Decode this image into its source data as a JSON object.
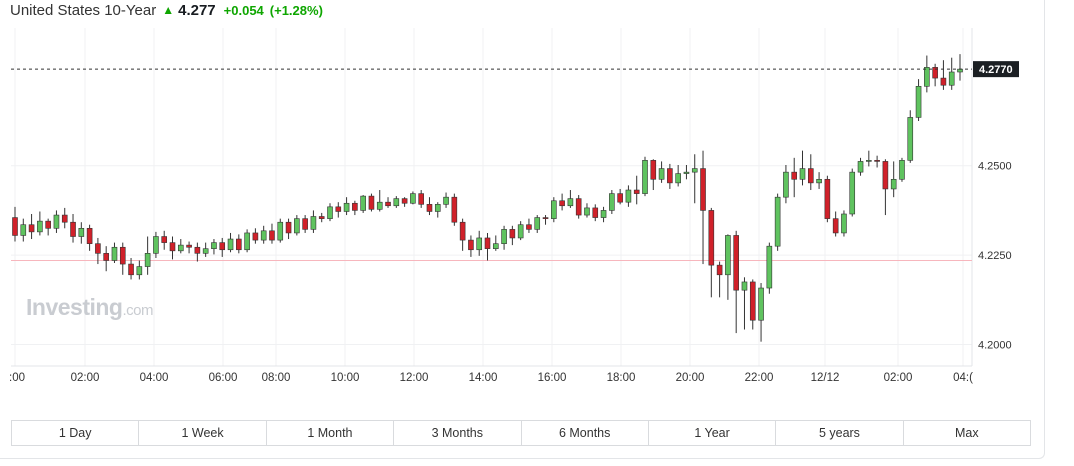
{
  "header": {
    "name": "United States 10-Year",
    "arrow": "▲",
    "price": "4.277",
    "change": "+0.054",
    "change_pct": "(+1.28%)"
  },
  "watermark": {
    "brand": "Investing",
    "suffix": ".com"
  },
  "last_price_label": "4.2770",
  "colors": {
    "up": "#5fc35f",
    "down": "#d0212a",
    "prev_close_line": "#f7b6bd"
  },
  "tabs": [
    "1 Day",
    "1 Week",
    "1 Month",
    "3 Months",
    "6 Months",
    "1 Year",
    "5 years",
    "Max"
  ],
  "chart_data": {
    "type": "candlestick",
    "ylim": [
      4.194,
      4.2885
    ],
    "y_ticks": [
      {
        "value": 4.25,
        "label": "4.2500"
      },
      {
        "value": 4.225,
        "label": "4.2250"
      },
      {
        "value": 4.2,
        "label": "4.2000"
      }
    ],
    "x_ticks": [
      ":00",
      "02:00",
      "04:00",
      "06:00",
      "08:00",
      "10:00",
      "12:00",
      "14:00",
      "16:00",
      "18:00",
      "20:00",
      "22:00",
      "12/12",
      "02:00",
      "04:("
    ],
    "last_price": 4.277,
    "prev_close": 4.2235,
    "candles": [
      [
        4.2355,
        4.2305,
        4.2385,
        4.2288
      ],
      [
        4.2305,
        4.2335,
        4.2352,
        4.2288
      ],
      [
        4.2335,
        4.2315,
        4.2365,
        4.2295
      ],
      [
        4.2315,
        4.2345,
        4.2372,
        4.2305
      ],
      [
        4.2345,
        4.2325,
        4.2352,
        4.2305
      ],
      [
        4.2325,
        4.2362,
        4.2375,
        4.2312
      ],
      [
        4.2362,
        4.2342,
        4.2382,
        4.2325
      ],
      [
        4.2342,
        4.2302,
        4.2365,
        4.2285
      ],
      [
        4.2302,
        4.2325,
        4.2342,
        4.2282
      ],
      [
        4.2325,
        4.2282,
        4.2335,
        4.2262
      ],
      [
        4.2282,
        4.2255,
        4.2298,
        4.2225
      ],
      [
        4.2255,
        4.2235,
        4.2275,
        4.2205
      ],
      [
        4.2235,
        4.2272,
        4.2285,
        4.2228
      ],
      [
        4.2272,
        4.2225,
        4.2285,
        4.2195
      ],
      [
        4.2225,
        4.2195,
        4.2242,
        4.2182
      ],
      [
        4.2195,
        4.2218,
        4.2235,
        4.2182
      ],
      [
        4.2218,
        4.2255,
        4.2302,
        4.2195
      ],
      [
        4.2255,
        4.2302,
        4.2315,
        4.2242
      ],
      [
        4.2302,
        4.2285,
        4.2318,
        4.2265
      ],
      [
        4.2285,
        4.2262,
        4.2302,
        4.2238
      ],
      [
        4.2262,
        4.2278,
        4.2295,
        4.2255
      ],
      [
        4.2278,
        4.2272,
        4.2288,
        4.2255
      ],
      [
        4.2272,
        4.2255,
        4.2285,
        4.2232
      ],
      [
        4.2255,
        4.2268,
        4.2285,
        4.2245
      ],
      [
        4.2268,
        4.2285,
        4.2295,
        4.2252
      ],
      [
        4.2285,
        4.2265,
        4.2298,
        4.2245
      ],
      [
        4.2265,
        4.2295,
        4.2312,
        4.2258
      ],
      [
        4.2295,
        4.2265,
        4.2308,
        4.2255
      ],
      [
        4.2265,
        4.2312,
        4.2322,
        4.2258
      ],
      [
        4.2312,
        4.2292,
        4.2325,
        4.2282
      ],
      [
        4.2292,
        4.2318,
        4.2332,
        4.2282
      ],
      [
        4.2318,
        4.2292,
        4.2338,
        4.2282
      ],
      [
        4.2292,
        4.2342,
        4.2352,
        4.2285
      ],
      [
        4.2342,
        4.2312,
        4.2352,
        4.2295
      ],
      [
        4.2312,
        4.2352,
        4.2362,
        4.2305
      ],
      [
        4.2352,
        4.2322,
        4.2362,
        4.2312
      ],
      [
        4.2322,
        4.2358,
        4.2375,
        4.2312
      ],
      [
        4.2358,
        4.2352,
        4.2368,
        4.2342
      ],
      [
        4.2352,
        4.2385,
        4.2395,
        4.2345
      ],
      [
        4.2385,
        4.2372,
        4.2398,
        4.2355
      ],
      [
        4.2372,
        4.2395,
        4.2412,
        4.2362
      ],
      [
        4.2395,
        4.2375,
        4.2402,
        4.2362
      ],
      [
        4.2375,
        4.2415,
        4.2418,
        4.2368
      ],
      [
        4.2415,
        4.2378,
        4.2422,
        4.2372
      ],
      [
        4.2378,
        4.2398,
        4.2432,
        4.2372
      ],
      [
        4.2398,
        4.2388,
        4.2412,
        4.2382
      ],
      [
        4.2388,
        4.2408,
        4.2415,
        4.2382
      ],
      [
        4.2408,
        4.2395,
        4.2412,
        4.2385
      ],
      [
        4.2395,
        4.2422,
        4.2428,
        4.2392
      ],
      [
        4.2422,
        4.2392,
        4.2432,
        4.2382
      ],
      [
        4.2392,
        4.2372,
        4.2412,
        4.2362
      ],
      [
        4.2372,
        4.2392,
        4.2398,
        4.2355
      ],
      [
        4.2392,
        4.2412,
        4.2425,
        4.2382
      ],
      [
        4.2412,
        4.2342,
        4.2422,
        4.2332
      ],
      [
        4.2342,
        4.2292,
        4.2352,
        4.2262
      ],
      [
        4.2292,
        4.2265,
        4.2305,
        4.2245
      ],
      [
        4.2265,
        4.2298,
        4.2318,
        4.2248
      ],
      [
        4.2298,
        4.2268,
        4.2312,
        4.2235
      ],
      [
        4.2268,
        4.2282,
        4.2305,
        4.2262
      ],
      [
        4.2282,
        4.2322,
        4.2332,
        4.2265
      ],
      [
        4.2322,
        4.2298,
        4.2332,
        4.2278
      ],
      [
        4.2298,
        4.2335,
        4.2345,
        4.2292
      ],
      [
        4.2335,
        4.2322,
        4.2352,
        4.2312
      ],
      [
        4.2322,
        4.2355,
        4.2362,
        4.2312
      ],
      [
        4.2355,
        4.2352,
        4.2362,
        4.2335
      ],
      [
        4.2352,
        4.2402,
        4.2412,
        4.2342
      ],
      [
        4.2402,
        4.2388,
        4.2422,
        4.2375
      ],
      [
        4.2388,
        4.2408,
        4.2432,
        4.2382
      ],
      [
        4.2408,
        4.2362,
        4.2418,
        4.2352
      ],
      [
        4.2362,
        4.2382,
        4.2395,
        4.2355
      ],
      [
        4.2382,
        4.2355,
        4.2392,
        4.2345
      ],
      [
        4.2355,
        4.2375,
        4.2385,
        4.2342
      ],
      [
        4.2375,
        4.2422,
        4.2432,
        4.2365
      ],
      [
        4.2422,
        4.2398,
        4.2435,
        4.2392
      ],
      [
        4.2398,
        4.2432,
        4.2445,
        4.2385
      ],
      [
        4.2432,
        4.2422,
        4.2472,
        4.2392
      ],
      [
        4.2422,
        4.2515,
        4.2525,
        4.2415
      ],
      [
        4.2515,
        4.2462,
        4.2518,
        4.2432
      ],
      [
        4.2462,
        4.2492,
        4.2512,
        4.2452
      ],
      [
        4.2492,
        4.2452,
        4.2505,
        4.2435
      ],
      [
        4.2452,
        4.2478,
        4.2502,
        4.2442
      ],
      [
        4.2478,
        4.2482,
        4.2502,
        4.2462
      ],
      [
        4.2482,
        4.2492,
        4.2532,
        4.2395
      ],
      [
        4.2492,
        4.2375,
        4.2542,
        4.2225
      ],
      [
        4.2375,
        4.2222,
        4.2382,
        4.2132
      ],
      [
        4.2222,
        4.2195,
        4.2232,
        4.2132
      ],
      [
        4.2195,
        4.2305,
        4.2308,
        4.2125
      ],
      [
        4.2305,
        4.2152,
        4.2318,
        4.2032
      ],
      [
        4.2152,
        4.2175,
        4.2188,
        4.2042
      ],
      [
        4.2175,
        4.2068,
        4.2182,
        4.2042
      ],
      [
        4.2068,
        4.2158,
        4.2172,
        4.2008
      ],
      [
        4.2158,
        4.2275,
        4.2285,
        4.2142
      ],
      [
        4.2275,
        4.2412,
        4.2422,
        4.2262
      ],
      [
        4.2412,
        4.2482,
        4.2502,
        4.2395
      ],
      [
        4.2482,
        4.2462,
        4.2522,
        4.2412
      ],
      [
        4.2462,
        4.2492,
        4.2542,
        4.2445
      ],
      [
        4.2492,
        4.2452,
        4.2532,
        4.2432
      ],
      [
        4.2452,
        4.2462,
        4.2482,
        4.2435
      ],
      [
        4.2462,
        4.2352,
        4.2472,
        4.2342
      ],
      [
        4.2352,
        4.2312,
        4.2372,
        4.2302
      ],
      [
        4.2312,
        4.2365,
        4.2375,
        4.2302
      ],
      [
        4.2365,
        4.2482,
        4.2492,
        4.2358
      ],
      [
        4.2482,
        4.2512,
        4.2522,
        4.2472
      ],
      [
        4.2512,
        4.2515,
        4.2542,
        4.2498
      ],
      [
        4.2515,
        4.2512,
        4.2528,
        4.2495
      ],
      [
        4.2512,
        4.2435,
        4.2518,
        4.2362
      ],
      [
        4.2435,
        4.2462,
        4.2512,
        4.2412
      ],
      [
        4.2462,
        4.2515,
        4.2522,
        4.2455
      ],
      [
        4.2515,
        4.2635,
        4.2655,
        4.2508
      ],
      [
        4.2635,
        4.2722,
        4.2742,
        4.2625
      ],
      [
        4.2722,
        4.2775,
        4.2808,
        4.2705
      ],
      [
        4.2775,
        4.2745,
        4.2785,
        4.2722
      ],
      [
        4.2745,
        4.2725,
        4.2795,
        4.2712
      ],
      [
        4.2725,
        4.2762,
        4.2802,
        4.2712
      ],
      [
        4.2762,
        4.277,
        4.2812,
        4.2738
      ]
    ]
  }
}
